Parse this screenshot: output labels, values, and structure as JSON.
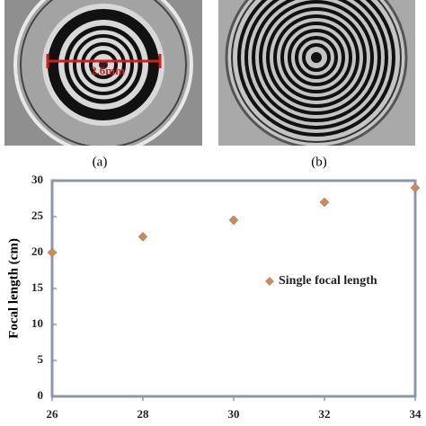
{
  "panels": [
    {
      "label": "(a)",
      "scale_bar": "2.6mm"
    },
    {
      "label": "(b)"
    }
  ],
  "chart_data": {
    "type": "scatter",
    "y_label": "Focal length (cm)",
    "x": [
      26,
      28,
      30,
      32,
      34
    ],
    "series": [
      {
        "name": "Single focal length",
        "color": "#c98a5e",
        "values": [
          20,
          22.2,
          24.5,
          27,
          29
        ]
      }
    ],
    "xlim": [
      26,
      34
    ],
    "ylim": [
      0,
      30
    ],
    "xticks": [
      26,
      28,
      30,
      32,
      34
    ],
    "yticks": [
      0,
      5,
      10,
      15,
      20,
      25,
      30
    ],
    "legend": "center-right"
  }
}
